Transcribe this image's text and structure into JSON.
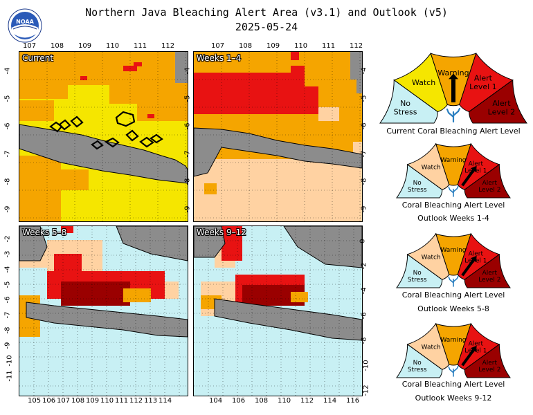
{
  "title_line1": "Northern Java Bleaching Alert Area (v3.1) and Outlook (v5)",
  "title_line2": "2025-05-24",
  "logo_text": "NOAA",
  "colors": {
    "no_stress": "#c8f0f4",
    "watch": "#f5e600",
    "warning": "#f5a500",
    "alert1": "#e81212",
    "alert2": "#9a0000",
    "outlook_watch": "#ffd2a2",
    "land": "#8c8c8c",
    "coast": "#000000"
  },
  "maps": [
    {
      "label": "Current",
      "top_ticks": [
        "107",
        "108",
        "109",
        "110",
        "111",
        "112"
      ],
      "right_ticks": [
        "-4",
        "-5",
        "-6",
        "-7",
        "-8",
        "-9"
      ]
    },
    {
      "label": "Weeks 1–4",
      "top_ticks": [
        "107",
        "108",
        "109",
        "110",
        "111",
        "112"
      ],
      "right_ticks": [
        "-4",
        "-5",
        "-6",
        "-7",
        "-8",
        "-9"
      ]
    },
    {
      "label": "Weeks 5–8",
      "bottom_ticks": [
        "105",
        "106",
        "107",
        "108",
        "109",
        "110",
        "111",
        "112",
        "113",
        "114"
      ],
      "left_ticks": [
        "-2",
        "-3",
        "-4",
        "-5",
        "-6",
        "-7",
        "-8",
        "-9",
        "-10",
        "-11"
      ]
    },
    {
      "label": "Weeks 9–12",
      "bottom_ticks": [
        "104",
        "106",
        "108",
        "110",
        "112",
        "114",
        "116"
      ],
      "right_ticks": [
        "0",
        "-2",
        "-4",
        "-6",
        "-8",
        "-10",
        "-12"
      ]
    }
  ],
  "left_ticks_top": [
    "-4",
    "-5",
    "-6",
    "-7",
    "-8",
    "-9"
  ],
  "gauges": [
    {
      "caption1": "Current Coral Bleaching Alert Level",
      "caption2": "",
      "level": "Warning",
      "level_index": 2,
      "labels": {
        "no_stress": "No Stress",
        "watch": "Watch",
        "warning": "Warning",
        "alert1": "Alert Level 1",
        "alert2": "Alert Level 2"
      }
    },
    {
      "caption1": "Coral Bleaching Alert Level",
      "caption2": "Outlook Weeks 1-4",
      "level": "Alert Level 1",
      "level_index": 3,
      "labels": {
        "no_stress": "No Stress",
        "watch": "Watch",
        "warning": "Warning",
        "alert1": "Alert Level 1",
        "alert2": "Alert Level 2"
      }
    },
    {
      "caption1": "Coral Bleaching Alert Level",
      "caption2": "Outlook Weeks 5-8",
      "level": "Alert Level 1",
      "level_index": 3,
      "labels": {
        "no_stress": "No Stress",
        "watch": "Watch",
        "warning": "Warning",
        "alert1": "Alert Level 1",
        "alert2": "Alert Level 2"
      }
    },
    {
      "caption1": "Coral Bleaching Alert Level",
      "caption2": "Outlook Weeks 9-12",
      "level": "Alert Level 1",
      "level_index": 3,
      "labels": {
        "no_stress": "No Stress",
        "watch": "Watch",
        "warning": "Warning",
        "alert1": "Alert Level 1",
        "alert2": "Alert Level 2"
      }
    }
  ]
}
